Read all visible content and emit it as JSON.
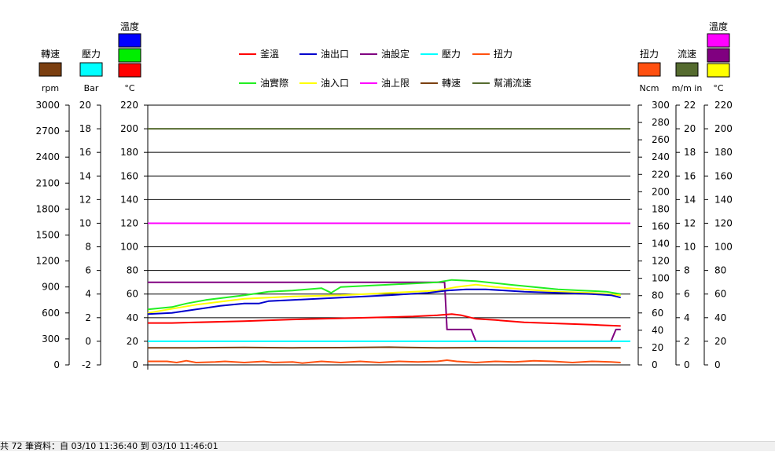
{
  "chart_data": {
    "type": "line",
    "x_domain": [
      0,
      100
    ],
    "main_axis": {
      "ylim": [
        0,
        220
      ],
      "ticks": [
        0,
        20,
        40,
        60,
        80,
        100,
        120,
        140,
        160,
        180,
        200,
        220
      ]
    },
    "left_axes": [
      {
        "id": "rpm",
        "title": "轉速",
        "unit": "rpm",
        "color": "#7b3f10",
        "ticks": [
          "0",
          "300",
          "600",
          "900",
          "1200",
          "1500",
          "1800",
          "2100",
          "2400",
          "2700",
          "3000"
        ]
      },
      {
        "id": "bar",
        "title": "壓力",
        "unit": "Bar",
        "color": "#00ffff",
        "ticks": [
          "-2",
          "0",
          "2",
          "4",
          "6",
          "8",
          "10",
          "12",
          "14",
          "16",
          "18",
          "20"
        ]
      },
      {
        "id": "temp_left",
        "title": "溫度",
        "unit": "°C",
        "colors": [
          "#0000ff",
          "#00ee00",
          "#ff0000"
        ],
        "ticks": [
          "0",
          "20",
          "40",
          "60",
          "80",
          "100",
          "120",
          "140",
          "160",
          "180",
          "200",
          "220"
        ]
      }
    ],
    "right_axes": [
      {
        "id": "ncm",
        "title": "扭力",
        "unit": "Ncm",
        "color": "#ff5010",
        "ticks": [
          "0",
          "20",
          "40",
          "60",
          "80",
          "100",
          "120",
          "140",
          "160",
          "180",
          "200",
          "220",
          "240",
          "260",
          "280",
          "300"
        ]
      },
      {
        "id": "flow",
        "title": "流速",
        "unit": "m/m in",
        "color": "#556b2f",
        "ticks": [
          "0",
          "2",
          "4",
          "6",
          "8",
          "10",
          "12",
          "14",
          "16",
          "18",
          "20",
          "22"
        ]
      },
      {
        "id": "temp_right",
        "title": "溫度",
        "unit": "°C",
        "colors": [
          "#ff00ff",
          "#800080",
          "#ffff00"
        ],
        "ticks": [
          "0",
          "20",
          "40",
          "60",
          "80",
          "100",
          "120",
          "140",
          "160",
          "180",
          "200",
          "220"
        ]
      }
    ],
    "legend": [
      {
        "name": "釜溫",
        "color": "#ff0000"
      },
      {
        "name": "油出口",
        "color": "#0000cc"
      },
      {
        "name": "油設定",
        "color": "#800080"
      },
      {
        "name": "壓力",
        "color": "#00ffff"
      },
      {
        "name": "扭力",
        "color": "#ff5010"
      },
      {
        "name": "油實際",
        "color": "#22ee22"
      },
      {
        "name": "油入口",
        "color": "#ffff00"
      },
      {
        "name": "油上限",
        "color": "#ff00ff"
      },
      {
        "name": "轉速",
        "color": "#7b3f10"
      },
      {
        "name": "幫浦流速",
        "color": "#556b2f"
      }
    ],
    "series": [
      {
        "name": "幫浦流速",
        "color": "#556b2f",
        "points": [
          [
            0,
            200
          ],
          [
            100,
            200
          ]
        ]
      },
      {
        "name": "油上限",
        "color": "#ff00ff",
        "points": [
          [
            0,
            120
          ],
          [
            100,
            120
          ]
        ]
      },
      {
        "name": "油設定",
        "color": "#800080",
        "points": [
          [
            0,
            70
          ],
          [
            61.5,
            70
          ],
          [
            62,
            30
          ],
          [
            67,
            30
          ],
          [
            68,
            20
          ],
          [
            96,
            20
          ],
          [
            97,
            30
          ],
          [
            98,
            30
          ]
        ]
      },
      {
        "name": "油實際",
        "color": "#22ee22",
        "points": [
          [
            0,
            47
          ],
          [
            5,
            49
          ],
          [
            8,
            52
          ],
          [
            12,
            55
          ],
          [
            20,
            59
          ],
          [
            25,
            62
          ],
          [
            30,
            63
          ],
          [
            36,
            65
          ],
          [
            38,
            61
          ],
          [
            40,
            66
          ],
          [
            45,
            67
          ],
          [
            50,
            68
          ],
          [
            55,
            69
          ],
          [
            60,
            70
          ],
          [
            63,
            72
          ],
          [
            68,
            71
          ],
          [
            75,
            68
          ],
          [
            80,
            66
          ],
          [
            85,
            64
          ],
          [
            90,
            63
          ],
          [
            95,
            62
          ],
          [
            98,
            60
          ]
        ]
      },
      {
        "name": "油入口",
        "color": "#ffff00",
        "points": [
          [
            0,
            44
          ],
          [
            10,
            51
          ],
          [
            20,
            56
          ],
          [
            30,
            58
          ],
          [
            40,
            59
          ],
          [
            50,
            61
          ],
          [
            60,
            63
          ],
          [
            64,
            66
          ],
          [
            68,
            68
          ],
          [
            72,
            66
          ],
          [
            78,
            64
          ],
          [
            85,
            62
          ],
          [
            92,
            61
          ],
          [
            98,
            59
          ]
        ]
      },
      {
        "name": "油出口",
        "color": "#0000cc",
        "points": [
          [
            0,
            43
          ],
          [
            5,
            44
          ],
          [
            10,
            47
          ],
          [
            15,
            50
          ],
          [
            20,
            52
          ],
          [
            23,
            52
          ],
          [
            25,
            54
          ],
          [
            30,
            55
          ],
          [
            40,
            57
          ],
          [
            50,
            59
          ],
          [
            58,
            61
          ],
          [
            62,
            63
          ],
          [
            66,
            64
          ],
          [
            70,
            64
          ],
          [
            78,
            62
          ],
          [
            85,
            61
          ],
          [
            92,
            60
          ],
          [
            96,
            59
          ],
          [
            98,
            57
          ]
        ]
      },
      {
        "name": "釜溫",
        "color": "#ff0000",
        "points": [
          [
            0,
            35.5
          ],
          [
            5,
            35.5
          ],
          [
            10,
            36
          ],
          [
            20,
            37
          ],
          [
            30,
            38.5
          ],
          [
            40,
            39.5
          ],
          [
            50,
            40.5
          ],
          [
            55,
            41
          ],
          [
            60,
            42
          ],
          [
            63,
            43
          ],
          [
            65,
            42
          ],
          [
            68,
            39
          ],
          [
            72,
            38
          ],
          [
            78,
            36
          ],
          [
            85,
            35
          ],
          [
            92,
            34
          ],
          [
            98,
            33
          ]
        ]
      },
      {
        "name": "壓力",
        "color": "#00ffff",
        "points": [
          [
            0,
            20
          ],
          [
            100,
            20
          ]
        ]
      },
      {
        "name": "轉速",
        "color": "#7b3f10",
        "points": [
          [
            0,
            14.5
          ],
          [
            10,
            14.5
          ],
          [
            20,
            14.8
          ],
          [
            30,
            14.5
          ],
          [
            40,
            14.6
          ],
          [
            50,
            15
          ],
          [
            60,
            14.5
          ],
          [
            70,
            14.6
          ],
          [
            80,
            14.4
          ],
          [
            90,
            14.5
          ],
          [
            98,
            14.5
          ]
        ]
      },
      {
        "name": "扭力",
        "color": "#ff5010",
        "points": [
          [
            0,
            3
          ],
          [
            4,
            3
          ],
          [
            6,
            2
          ],
          [
            8,
            3.5
          ],
          [
            10,
            2
          ],
          [
            14,
            2.5
          ],
          [
            16,
            3
          ],
          [
            20,
            2
          ],
          [
            24,
            3
          ],
          [
            26,
            2
          ],
          [
            30,
            2.5
          ],
          [
            32,
            1.5
          ],
          [
            36,
            3
          ],
          [
            40,
            2
          ],
          [
            44,
            3
          ],
          [
            48,
            2
          ],
          [
            52,
            3
          ],
          [
            56,
            2.5
          ],
          [
            60,
            3
          ],
          [
            62,
            4
          ],
          [
            64,
            3
          ],
          [
            68,
            2
          ],
          [
            72,
            3
          ],
          [
            76,
            2.5
          ],
          [
            80,
            3.5
          ],
          [
            84,
            3
          ],
          [
            88,
            2
          ],
          [
            92,
            3
          ],
          [
            96,
            2.5
          ],
          [
            98,
            2
          ]
        ]
      }
    ]
  },
  "status": {
    "text": "共 72 筆資料：自 03/10 11:36:40 到 03/10 11:46:01"
  }
}
